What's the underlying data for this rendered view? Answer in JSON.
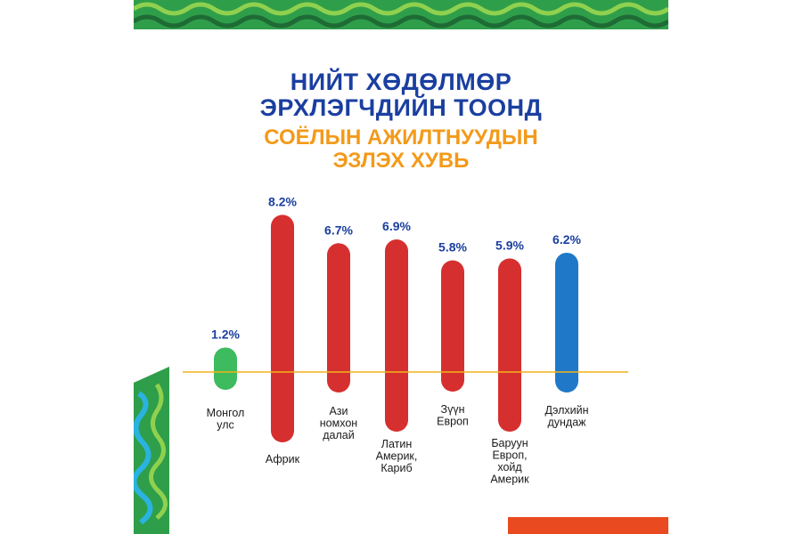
{
  "chart_data": {
    "type": "bar",
    "title": [
      "НИЙТ ХӨДӨЛМӨР",
      "ЭРХЛЭГЧДИЙН ТООНД"
    ],
    "subtitle": [
      "СОЁЛЫН АЖИЛТНУУДЫН",
      "ЭЗЛЭХ ХУВЬ"
    ],
    "categories": [
      [
        "Монгол",
        "улс"
      ],
      [
        "Африк"
      ],
      [
        "Ази",
        "номхон",
        "далай"
      ],
      [
        "Латин",
        "Америк,",
        "Кариб"
      ],
      [
        "Зүүн",
        "Европ"
      ],
      [
        "Баруун",
        "Европ,",
        "хойд",
        "Америк"
      ],
      [
        "Дэлхийн",
        "дундаж"
      ]
    ],
    "series": [
      {
        "values": [
          1.2,
          8.2,
          6.7,
          6.9,
          5.8,
          5.9,
          6.2
        ]
      }
    ],
    "data_labels": [
      "1.2%",
      "8.2%",
      "6.7%",
      "6.9%",
      "5.8%",
      "5.9%",
      "6.2%"
    ],
    "bar_colors": [
      "#3dbb5e",
      "#d62f2f",
      "#d62f2f",
      "#d62f2f",
      "#d62f2f",
      "#d62f2f",
      "#1f78c8"
    ],
    "label_color": "#1a3fa0",
    "baseline_color": "#f2b21a",
    "grid": false,
    "legend": "none"
  }
}
